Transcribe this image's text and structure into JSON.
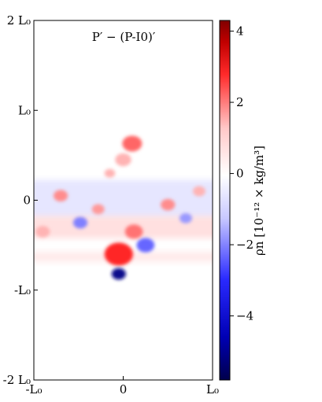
{
  "chart_data": {
    "type": "heatmap",
    "title": "P′ − (P-I0)′",
    "x_ticks": [
      {
        "value": -1,
        "label": "-L₀"
      },
      {
        "value": 0,
        "label": "0"
      },
      {
        "value": 1,
        "label": "L₀"
      }
    ],
    "y_ticks": [
      {
        "value": -2,
        "label": "-2 L₀"
      },
      {
        "value": -1,
        "label": "-L₀"
      },
      {
        "value": 0,
        "label": "0"
      },
      {
        "value": 1,
        "label": "L₀"
      },
      {
        "value": 2,
        "label": "2 L₀"
      }
    ],
    "xlim": [
      -1,
      1
    ],
    "ylim": [
      -2,
      2
    ],
    "colorbar": {
      "label": "ρn [10⁻¹² × kg/m³]",
      "range": [
        -5.8,
        4.3
      ],
      "ticks": [
        4,
        2,
        0,
        -2,
        -4
      ],
      "tick_labels": [
        "4",
        "2",
        "0",
        "−2",
        "−4"
      ],
      "colormap": "seismic"
    },
    "features": [
      {
        "kind": "band",
        "y": 0.0,
        "height": 0.45,
        "sign": "negative",
        "strength": 0.1
      },
      {
        "kind": "band",
        "y": -0.3,
        "height": 0.25,
        "sign": "positive",
        "strength": 0.12
      },
      {
        "kind": "band",
        "y": -0.63,
        "height": 0.12,
        "sign": "positive",
        "strength": 0.08
      },
      {
        "kind": "plume",
        "x": 0.1,
        "y": 0.63,
        "r": 0.11,
        "sign": "positive",
        "strength": 0.6
      },
      {
        "kind": "plume",
        "x": 0.0,
        "y": 0.45,
        "r": 0.09,
        "sign": "positive",
        "strength": 0.3
      },
      {
        "kind": "plume",
        "x": -0.05,
        "y": -0.6,
        "r": 0.16,
        "sign": "positive",
        "strength": 0.85
      },
      {
        "kind": "plume",
        "x": -0.05,
        "y": -0.82,
        "r": 0.08,
        "sign": "negative",
        "strength": 0.95
      },
      {
        "kind": "plume",
        "x": 0.25,
        "y": -0.5,
        "r": 0.1,
        "sign": "negative",
        "strength": 0.6
      },
      {
        "kind": "plume",
        "x": 0.12,
        "y": -0.35,
        "r": 0.1,
        "sign": "positive",
        "strength": 0.55
      },
      {
        "kind": "plume",
        "x": -0.7,
        "y": 0.05,
        "r": 0.08,
        "sign": "positive",
        "strength": 0.45
      },
      {
        "kind": "plume",
        "x": -0.48,
        "y": -0.25,
        "r": 0.08,
        "sign": "negative",
        "strength": 0.5
      },
      {
        "kind": "plume",
        "x": -0.28,
        "y": -0.1,
        "r": 0.07,
        "sign": "positive",
        "strength": 0.4
      },
      {
        "kind": "plume",
        "x": 0.5,
        "y": -0.05,
        "r": 0.08,
        "sign": "positive",
        "strength": 0.45
      },
      {
        "kind": "plume",
        "x": 0.7,
        "y": -0.2,
        "r": 0.07,
        "sign": "negative",
        "strength": 0.4
      },
      {
        "kind": "plume",
        "x": 0.85,
        "y": 0.1,
        "r": 0.07,
        "sign": "positive",
        "strength": 0.3
      },
      {
        "kind": "plume",
        "x": -0.9,
        "y": -0.35,
        "r": 0.08,
        "sign": "positive",
        "strength": 0.3
      },
      {
        "kind": "plume",
        "x": -0.15,
        "y": 0.3,
        "r": 0.06,
        "sign": "positive",
        "strength": 0.3
      }
    ]
  }
}
